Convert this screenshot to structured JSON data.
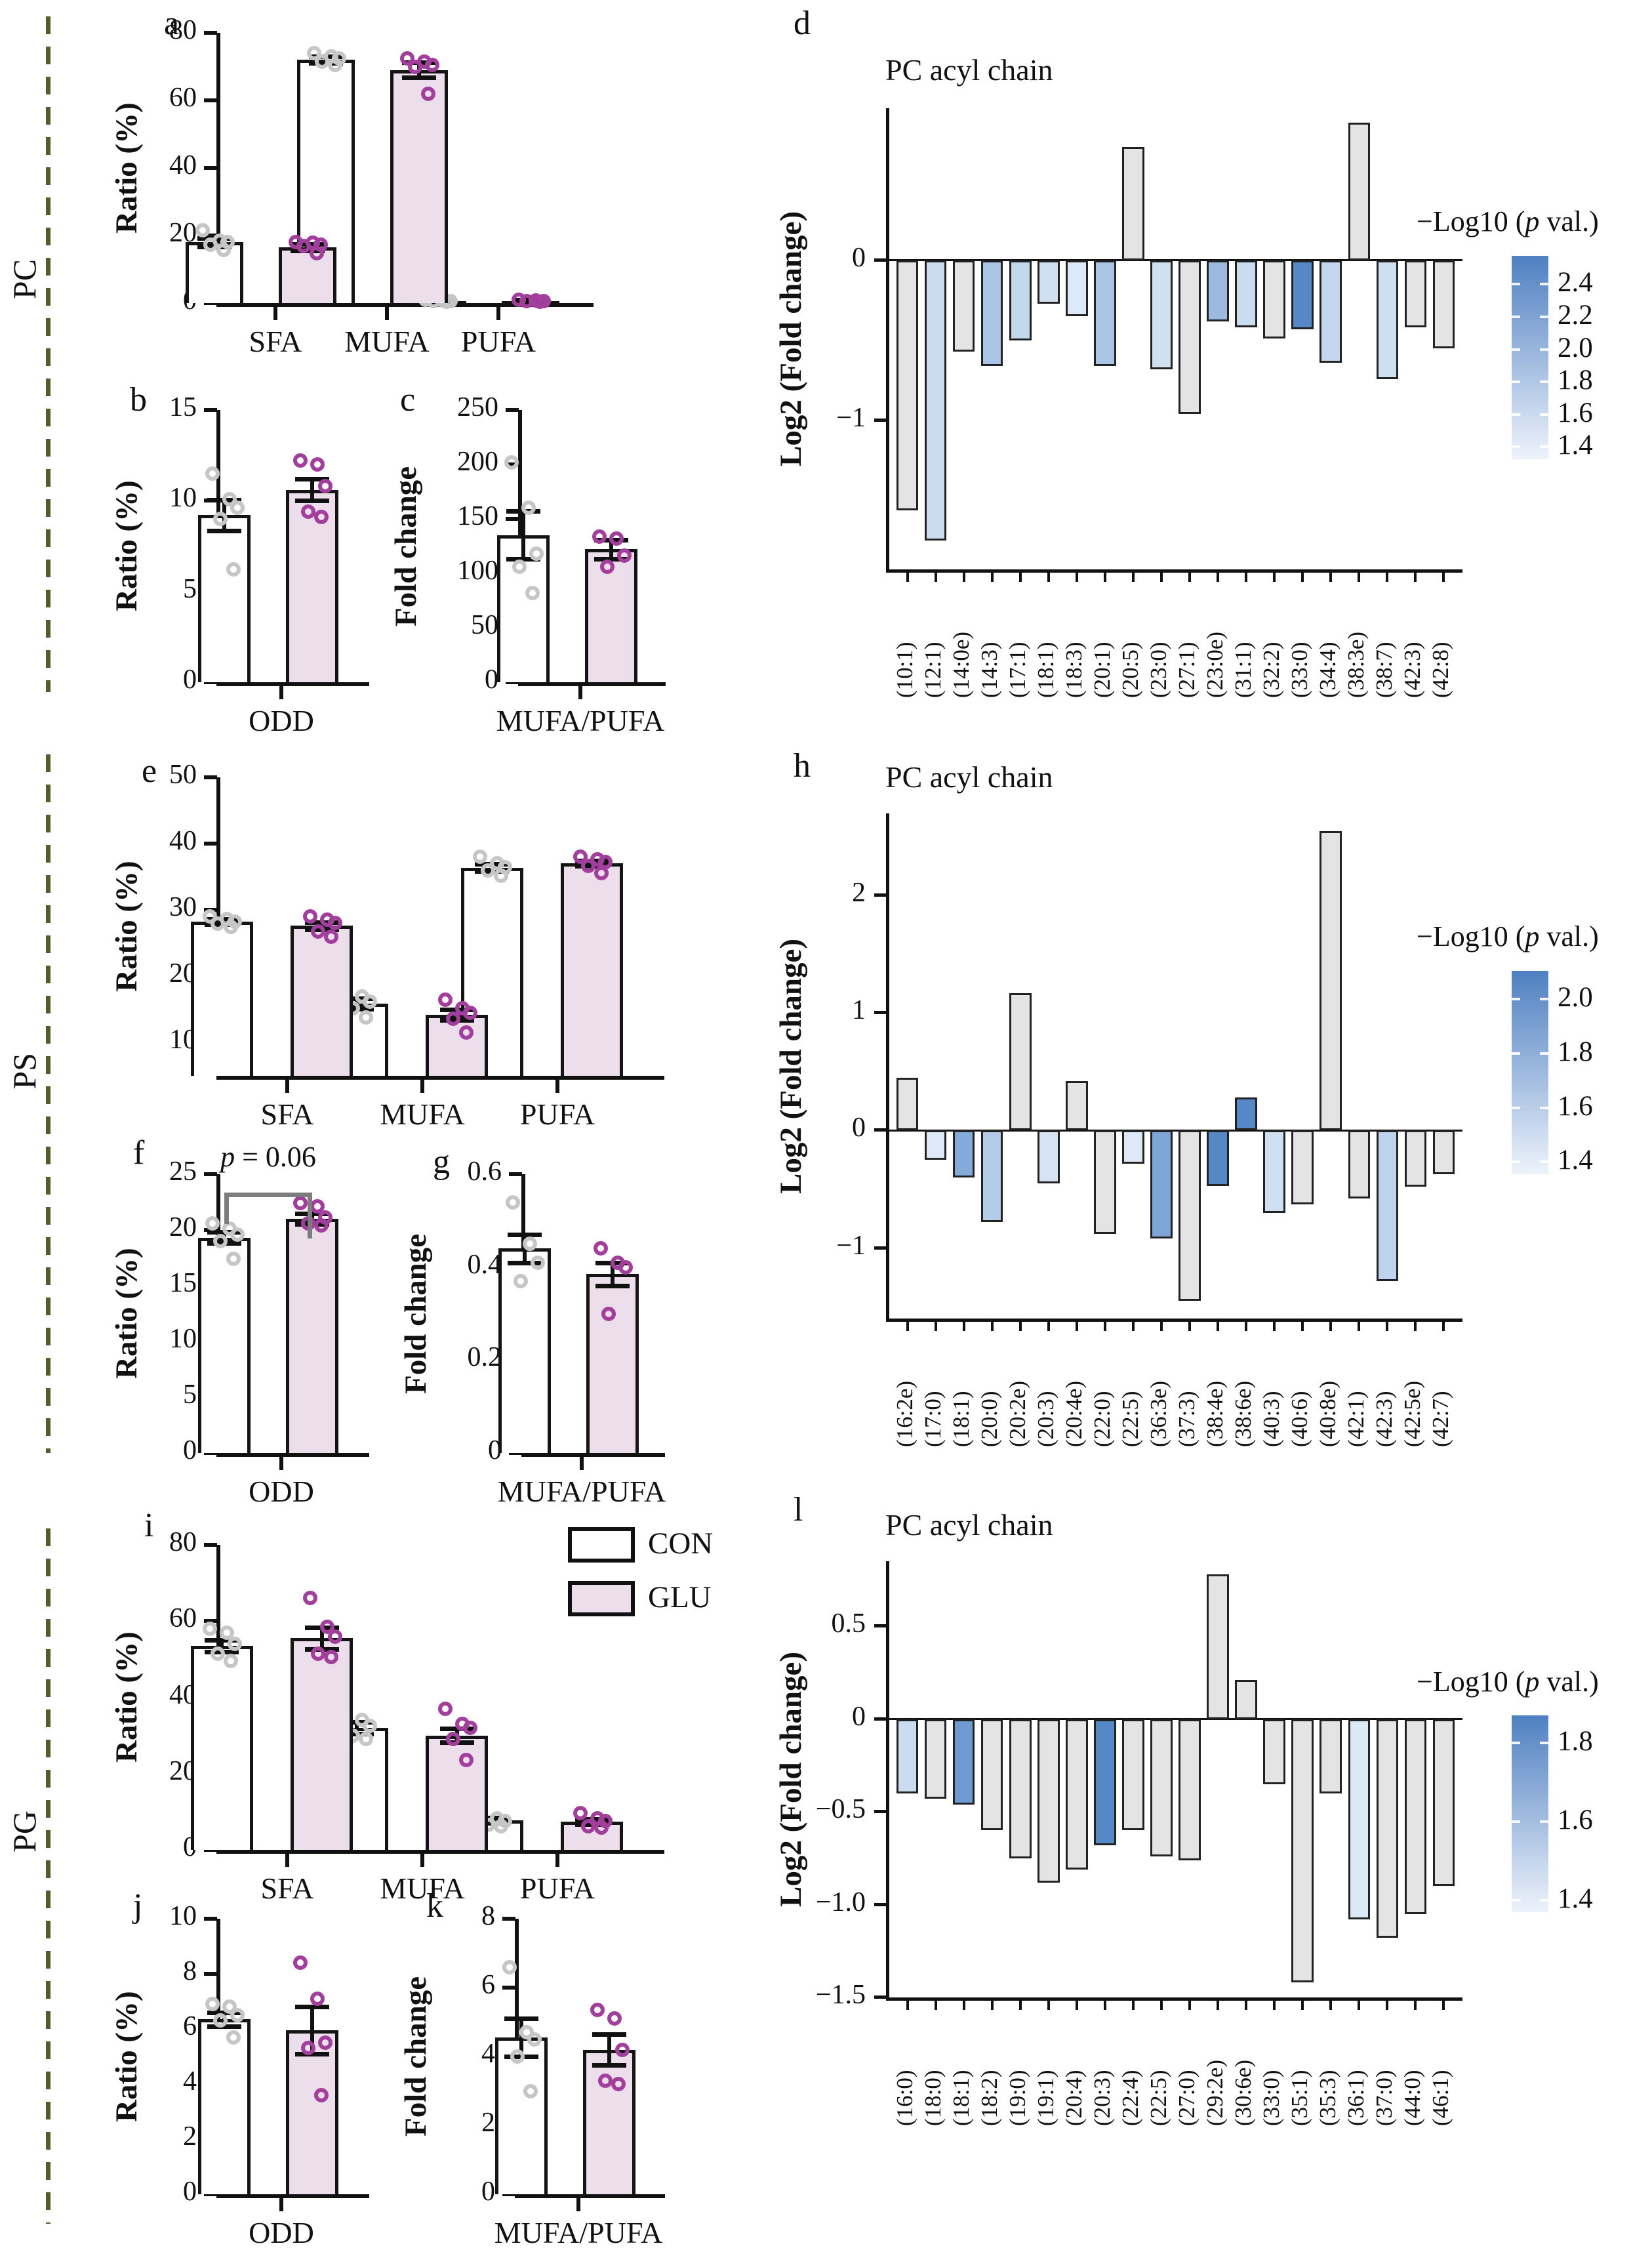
{
  "figure": {
    "row_labels": [
      "PC",
      "PS",
      "PG"
    ],
    "legend": {
      "con": "CON",
      "glu": "GLU"
    },
    "colors": {
      "con_fill": "#ffffff",
      "glu_fill": "#ecdeea",
      "con_dot": "#c6c6c6",
      "glu_dot": "#a23f9d",
      "gray_bar": "#e4e4e4",
      "dash_line": "#4e5f2d",
      "cbar_top": "#4f80c1",
      "cbar_bottom": "#edf3fb"
    }
  },
  "chart_data": [
    {
      "id": "a",
      "panel_label": "a",
      "type": "bar",
      "subtype": "grouped",
      "ylabel": "Ratio (%)",
      "ylim": [
        0,
        80
      ],
      "yticks": [
        [
          0,
          "0"
        ],
        [
          20,
          "20"
        ],
        [
          40,
          "40"
        ],
        [
          60,
          "60"
        ],
        [
          80,
          "80"
        ]
      ],
      "categories": [
        "SFA",
        "MUFA",
        "PUFA"
      ],
      "series": [
        {
          "name": "CON",
          "values": [
            18,
            72,
            0.6
          ],
          "err": [
            1.3,
            1.0,
            0.3
          ],
          "dots": [
            [
              21.5,
              18.5,
              18,
              17.2,
              15.8
            ],
            [
              74,
              73,
              72.5,
              71.5,
              70.5
            ],
            [
              0.9,
              0.7,
              0.6,
              0.5,
              0.4
            ]
          ]
        },
        {
          "name": "GLU",
          "values": [
            16.5,
            69,
            0.6
          ],
          "err": [
            0.9,
            2.2,
            0.3
          ],
          "dots": [
            [
              18,
              17.8,
              17.2,
              16.8,
              14.8
            ],
            [
              72.5,
              71.5,
              70.5,
              70,
              62
            ],
            [
              0.9,
              0.7,
              0.6,
              0.5,
              0.4
            ]
          ]
        }
      ]
    },
    {
      "id": "b",
      "panel_label": "b",
      "type": "bar",
      "subtype": "grouped",
      "ylabel": "Ratio (%)",
      "ylim": [
        0,
        15
      ],
      "yticks": [
        [
          0,
          "0"
        ],
        [
          5,
          "5"
        ],
        [
          10,
          "10"
        ],
        [
          15,
          "15"
        ]
      ],
      "categories": [
        "ODD"
      ],
      "series": [
        {
          "name": "CON",
          "values": [
            9.2
          ],
          "err": [
            0.85
          ],
          "dots": [
            [
              11.5,
              10.1,
              9.6,
              9.0,
              6.2
            ]
          ]
        },
        {
          "name": "GLU",
          "values": [
            10.6
          ],
          "err": [
            0.6
          ],
          "dots": [
            [
              12.2,
              12.0,
              10.8,
              9.4,
              9.1
            ]
          ]
        }
      ]
    },
    {
      "id": "c",
      "panel_label": "c",
      "type": "bar",
      "subtype": "grouped",
      "ylabel": "Fold change",
      "ylim": [
        0,
        250
      ],
      "yticks": [
        [
          0,
          "0"
        ],
        [
          50,
          "50"
        ],
        [
          100,
          "100"
        ],
        [
          150,
          "150"
        ],
        [
          200,
          "200"
        ],
        [
          250,
          "250"
        ]
      ],
      "categories": [
        "MUFA/PUFA"
      ],
      "series": [
        {
          "name": "CON",
          "values": [
            135
          ],
          "err": [
            22
          ],
          "dots": [
            [
              202,
              160,
              118,
              106,
              82
            ]
          ]
        },
        {
          "name": "GLU",
          "values": [
            122
          ],
          "err": [
            9
          ],
          "dots": [
            [
              134,
              132,
              116,
              106
            ]
          ]
        }
      ]
    },
    {
      "id": "d",
      "panel_label": "d",
      "type": "bar",
      "subtype": "acyl",
      "title": "PC acyl chain",
      "ylabel": "Log2 (Fold change)",
      "ylim": [
        -1.93,
        0.95
      ],
      "yticks": [
        [
          0,
          "0"
        ],
        [
          -1,
          "−1"
        ]
      ],
      "categories": [
        "(10:1)",
        "(12:1)",
        "(14:0e)",
        "(14:3)",
        "(17:1)",
        "(18:1)",
        "(18:3)",
        "(20:1)",
        "(20:5)",
        "(23:0)",
        "(27:1)",
        "(23:0e)",
        "(31:1)",
        "(32:2)",
        "(33:0)",
        "(34:4)",
        "(38:3e)",
        "(38:7)",
        "(42:3)",
        "(42:8)"
      ],
      "values": [
        -1.56,
        -1.75,
        -0.57,
        -0.66,
        -0.5,
        -0.27,
        -0.35,
        -0.66,
        0.71,
        -0.68,
        -0.96,
        -0.38,
        -0.42,
        -0.49,
        -0.43,
        -0.64,
        0.86,
        -0.74,
        -0.42,
        -0.55
      ],
      "bar_colors": [
        "#e4e4e4",
        "#ccdcf0",
        "#e4e4e4",
        "#a9c4e4",
        "#c3d7ee",
        "#cfe0f3",
        "#dde9f7",
        "#a9c4e4",
        "#e4e4e4",
        "#cfe0f3",
        "#e4e4e4",
        "#9cbade",
        "#c9dcf0",
        "#e4e4e4",
        "#5687c6",
        "#c3d7ee",
        "#e4e4e4",
        "#cde0f2",
        "#e4e4e4",
        "#e4e4e4"
      ],
      "colorbar": {
        "label_prefix": "−Log10 (",
        "label_italic": "p",
        "label_suffix": " val.)",
        "ticks": [
          "2.4",
          "2.2",
          "2.0",
          "1.8",
          "1.6",
          "1.4"
        ]
      }
    },
    {
      "id": "e",
      "panel_label": "e",
      "type": "bar",
      "subtype": "grouped",
      "ylabel": "Ratio (%)",
      "ylim": [
        5,
        50
      ],
      "yticks": [
        [
          10,
          "10"
        ],
        [
          20,
          "20"
        ],
        [
          30,
          "30"
        ],
        [
          40,
          "40"
        ],
        [
          50,
          "50"
        ]
      ],
      "categories": [
        "SFA",
        "MUFA",
        "PUFA"
      ],
      "series": [
        {
          "name": "CON",
          "values": [
            28.2,
            15.9,
            36.4
          ],
          "err": [
            0.4,
            0.8,
            0.5
          ],
          "dots": [
            [
              29,
              28.6,
              28.2,
              27.9,
              27.5
            ],
            [
              18.5,
              17,
              16.2,
              15.2,
              13.8
            ],
            [
              38,
              37,
              36.5,
              36,
              35.2
            ]
          ]
        },
        {
          "name": "GLU",
          "values": [
            27.6,
            14.2,
            37
          ],
          "err": [
            0.5,
            0.8,
            0.4
          ],
          "dots": [
            [
              29,
              28.5,
              28,
              26.8,
              26
            ],
            [
              16.5,
              15.2,
              14.5,
              13.6,
              11.5
            ],
            [
              38,
              37.6,
              37.2,
              36.6,
              35.6
            ]
          ]
        }
      ]
    },
    {
      "id": "f",
      "panel_label": "f",
      "type": "bar",
      "subtype": "grouped",
      "ylabel": "Ratio (%)",
      "ylim": [
        0,
        25
      ],
      "yticks": [
        [
          0,
          "0"
        ],
        [
          5,
          "5"
        ],
        [
          10,
          "10"
        ],
        [
          15,
          "15"
        ],
        [
          20,
          "20"
        ],
        [
          25,
          "25"
        ]
      ],
      "categories": [
        "ODD"
      ],
      "annotation": {
        "italic": "p",
        "text": " = 0.06"
      },
      "series": [
        {
          "name": "CON",
          "values": [
            19.3
          ],
          "err": [
            0.5
          ],
          "dots": [
            [
              20.6,
              20.1,
              19.6,
              19.0,
              17.4
            ]
          ]
        },
        {
          "name": "GLU",
          "values": [
            21.0
          ],
          "err": [
            0.45
          ],
          "dots": [
            [
              22.4,
              22.1,
              21.1,
              20.6,
              20.4
            ]
          ]
        }
      ]
    },
    {
      "id": "g",
      "panel_label": "g",
      "type": "bar",
      "subtype": "grouped",
      "ylabel": "Fold change",
      "ylim": [
        0,
        0.6
      ],
      "yticks": [
        [
          0,
          "0"
        ],
        [
          0.2,
          "0.2"
        ],
        [
          0.4,
          "0.4"
        ],
        [
          0.6,
          "0.6"
        ]
      ],
      "categories": [
        "MUFA/PUFA"
      ],
      "series": [
        {
          "name": "CON",
          "values": [
            0.44
          ],
          "err": [
            0.03
          ],
          "dots": [
            [
              0.54,
              0.45,
              0.41,
              0.37
            ]
          ]
        },
        {
          "name": "GLU",
          "values": [
            0.385
          ],
          "err": [
            0.025
          ],
          "dots": [
            [
              0.44,
              0.41,
              0.4,
              0.3
            ]
          ]
        }
      ]
    },
    {
      "id": "h",
      "panel_label": "h",
      "type": "bar",
      "subtype": "acyl",
      "title": "PC acyl chain",
      "ylabel": "Log2 (Fold change)",
      "ylim": [
        -1.6,
        2.7
      ],
      "yticks": [
        [
          2,
          "2"
        ],
        [
          1,
          "1"
        ],
        [
          0,
          "0"
        ],
        [
          -1,
          "−1"
        ]
      ],
      "categories": [
        "(16:2e)",
        "(17:0)",
        "(18:1)",
        "(20:0)",
        "(20:2e)",
        "(20:3)",
        "(20:4e)",
        "(22:0)",
        "(22:5)",
        "(36:3e)",
        "(37:3)",
        "(38:4e)",
        "(38:6e)",
        "(40:3)",
        "(40:6)",
        "(40:8e)",
        "(42:1)",
        "(42:3)",
        "(42:5e)",
        "(42:7)"
      ],
      "values": [
        0.45,
        -0.25,
        -0.4,
        -0.78,
        1.17,
        -0.45,
        0.42,
        -0.88,
        -0.28,
        -0.92,
        -1.45,
        -0.47,
        0.28,
        -0.7,
        -0.63,
        2.55,
        -0.58,
        -1.28,
        -0.48,
        -0.37
      ],
      "bar_colors": [
        "#e4e4e4",
        "#dde9f7",
        "#84aad9",
        "#b5cce9",
        "#e4e4e4",
        "#d5e3f4",
        "#e4e4e4",
        "#e4e4e4",
        "#dde9f7",
        "#7da5d8",
        "#e4e4e4",
        "#5687c6",
        "#5687c6",
        "#cfe0f3",
        "#e4e4e4",
        "#e4e4e4",
        "#e4e4e4",
        "#bed3ec",
        "#e4e4e4",
        "#e4e4e4"
      ],
      "colorbar": {
        "label_prefix": "−Log10 (",
        "label_italic": "p",
        "label_suffix": " val.)",
        "ticks": [
          "2.0",
          "1.8",
          "1.6",
          "1.4"
        ]
      }
    },
    {
      "id": "i",
      "panel_label": "i",
      "type": "bar",
      "subtype": "grouped",
      "ylabel": "Ratio (%)",
      "ylim": [
        0,
        80
      ],
      "yticks": [
        [
          0,
          "0"
        ],
        [
          20,
          "20"
        ],
        [
          40,
          "40"
        ],
        [
          60,
          "60"
        ],
        [
          80,
          "80"
        ]
      ],
      "categories": [
        "SFA",
        "MUFA",
        "PUFA"
      ],
      "series": [
        {
          "name": "CON",
          "values": [
            53.5,
            32,
            7.8
          ],
          "err": [
            1.6,
            1.5,
            0.7
          ],
          "dots": [
            [
              58,
              57,
              54,
              51.5,
              49.5
            ],
            [
              38,
              34,
              32.5,
              30,
              29
            ],
            [
              10,
              8.2,
              7.6,
              6.6,
              6.2
            ]
          ]
        },
        {
          "name": "GLU",
          "values": [
            55.5,
            30,
            7.4
          ],
          "err": [
            2.8,
            1.8,
            0.7
          ],
          "dots": [
            [
              66,
              58.5,
              56,
              51.5,
              50.5
            ],
            [
              37,
              33,
              32,
              29,
              23.5
            ],
            [
              9.6,
              8.2,
              7.6,
              6.2,
              5.8
            ]
          ]
        }
      ]
    },
    {
      "id": "j",
      "panel_label": "j",
      "type": "bar",
      "subtype": "grouped",
      "ylabel": "Ratio (%)",
      "ylim": [
        0,
        10
      ],
      "yticks": [
        [
          0,
          "0"
        ],
        [
          2,
          "2"
        ],
        [
          4,
          "4"
        ],
        [
          6,
          "6"
        ],
        [
          8,
          "8"
        ],
        [
          10,
          "10"
        ]
      ],
      "categories": [
        "ODD"
      ],
      "series": [
        {
          "name": "CON",
          "values": [
            6.35
          ],
          "err": [
            0.25
          ],
          "dots": [
            [
              6.9,
              6.8,
              6.5,
              6.3,
              5.7
            ]
          ]
        },
        {
          "name": "GLU",
          "values": [
            5.95
          ],
          "err": [
            0.85
          ],
          "dots": [
            [
              8.4,
              7.1,
              5.5,
              5.3,
              3.6
            ]
          ]
        }
      ]
    },
    {
      "id": "k",
      "panel_label": "k",
      "type": "bar",
      "subtype": "grouped",
      "ylabel": "Fold change",
      "ylim": [
        0,
        8
      ],
      "yticks": [
        [
          0,
          "0"
        ],
        [
          2,
          "2"
        ],
        [
          4,
          "4"
        ],
        [
          6,
          "6"
        ],
        [
          8,
          "8"
        ]
      ],
      "categories": [
        "MUFA/PUFA"
      ],
      "series": [
        {
          "name": "CON",
          "values": [
            4.55
          ],
          "err": [
            0.55
          ],
          "dots": [
            [
              6.6,
              4.7,
              4.5,
              4.0,
              3.0
            ]
          ]
        },
        {
          "name": "GLU",
          "values": [
            4.2
          ],
          "err": [
            0.45
          ],
          "dots": [
            [
              5.35,
              5.1,
              4.2,
              3.3,
              3.2
            ]
          ]
        }
      ]
    },
    {
      "id": "l",
      "panel_label": "l",
      "type": "bar",
      "subtype": "acyl",
      "title": "PC acyl chain",
      "ylabel": "Log2 (Fold change)",
      "ylim": [
        -1.5,
        0.85
      ],
      "yticks": [
        [
          0.5,
          "0.5"
        ],
        [
          0,
          "0"
        ],
        [
          -0.5,
          "−0.5"
        ],
        [
          -1,
          "−1.0"
        ],
        [
          -1.5,
          "−1.5"
        ]
      ],
      "categories": [
        "(16:0)",
        "(18:0)",
        "(18:1)",
        "(18:2)",
        "(19:0)",
        "(19:1)",
        "(20:4)",
        "(20:3)",
        "(22:4)",
        "(22:5)",
        "(27:0)",
        "(29:2e)",
        "(30:6e)",
        "(33:0)",
        "(35:1)",
        "(35:3)",
        "(36:1)",
        "(37:0)",
        "(44:0)",
        "(46:1)"
      ],
      "values": [
        -0.4,
        -0.43,
        -0.46,
        -0.6,
        -0.75,
        -0.88,
        -0.81,
        -0.68,
        -0.6,
        -0.74,
        -0.76,
        0.78,
        0.21,
        -0.35,
        -1.42,
        -0.4,
        -1.08,
        -1.18,
        -1.05,
        -0.9
      ],
      "bar_colors": [
        "#c9dcf0",
        "#e4e4e4",
        "#6f9bd2",
        "#e4e4e4",
        "#e4e4e4",
        "#e4e4e4",
        "#e4e4e4",
        "#5687c6",
        "#e4e4e4",
        "#e4e4e4",
        "#e4e4e4",
        "#e4e4e4",
        "#e4e4e4",
        "#e4e4e4",
        "#e4e4e4",
        "#e4e4e4",
        "#dbe8f6",
        "#e4e4e4",
        "#e4e4e4",
        "#e4e4e4"
      ],
      "colorbar": {
        "label_prefix": "−Log10 (",
        "label_italic": "p",
        "label_suffix": " val.)",
        "ticks": [
          "1.8",
          "1.6",
          "1.4"
        ]
      }
    }
  ]
}
